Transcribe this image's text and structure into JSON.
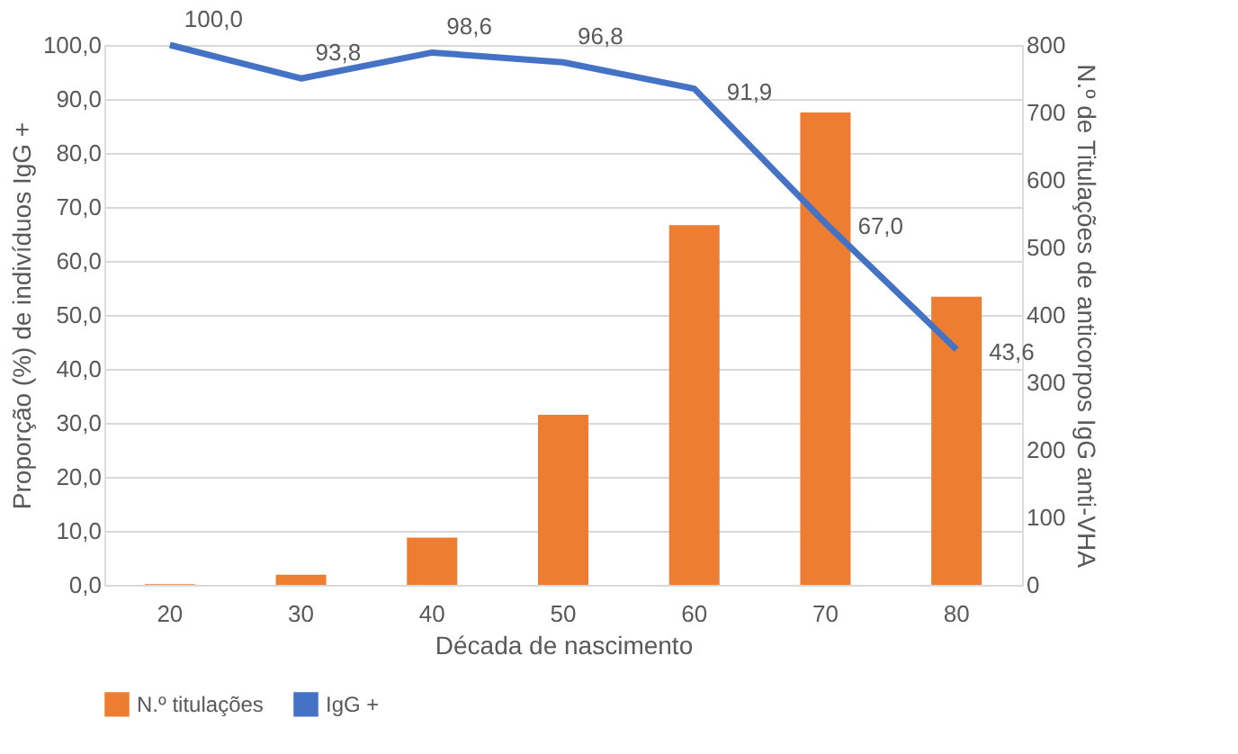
{
  "chart_data": {
    "type": "bar",
    "xlabel": "Década de nascimento",
    "ylabel": "Proporção (%) de indivíduos IgG +",
    "y2label": "N.º de Titulações de anticorpos IgG anti-VHA",
    "categories": [
      "20",
      "30",
      "40",
      "50",
      "60",
      "70",
      "80"
    ],
    "series": [
      {
        "name": "N.º  titulações",
        "axis": "y2",
        "color": "#ed7d31",
        "values": [
          1,
          15,
          70,
          252,
          533,
          700,
          427
        ]
      },
      {
        "name": "IgG +",
        "type": "line",
        "axis": "y",
        "color": "#4472c4",
        "values": [
          100.0,
          93.8,
          98.6,
          96.8,
          91.9,
          67.0,
          43.6
        ],
        "value_labels": [
          "100,0",
          "93,8",
          "98,6",
          "96,8",
          "91,9",
          "67,0",
          "43,6"
        ]
      }
    ],
    "ylim": [
      0,
      100
    ],
    "yticks": [
      {
        "value": 0,
        "label": "0,0"
      },
      {
        "value": 10,
        "label": "10,0"
      },
      {
        "value": 20,
        "label": "20,0"
      },
      {
        "value": 30,
        "label": "30,0"
      },
      {
        "value": 40,
        "label": "40,0"
      },
      {
        "value": 50,
        "label": "50,0"
      },
      {
        "value": 60,
        "label": "60,0"
      },
      {
        "value": 70,
        "label": "70,0"
      },
      {
        "value": 80,
        "label": "80,0"
      },
      {
        "value": 90,
        "label": "90,0"
      },
      {
        "value": 100,
        "label": "100,0"
      }
    ],
    "y2lim": [
      0,
      800
    ],
    "y2ticks": [
      0,
      100,
      200,
      300,
      400,
      500,
      600,
      700,
      800
    ],
    "grid": "y",
    "legend": "bottom",
    "marker": "none",
    "line_style": "solid"
  }
}
